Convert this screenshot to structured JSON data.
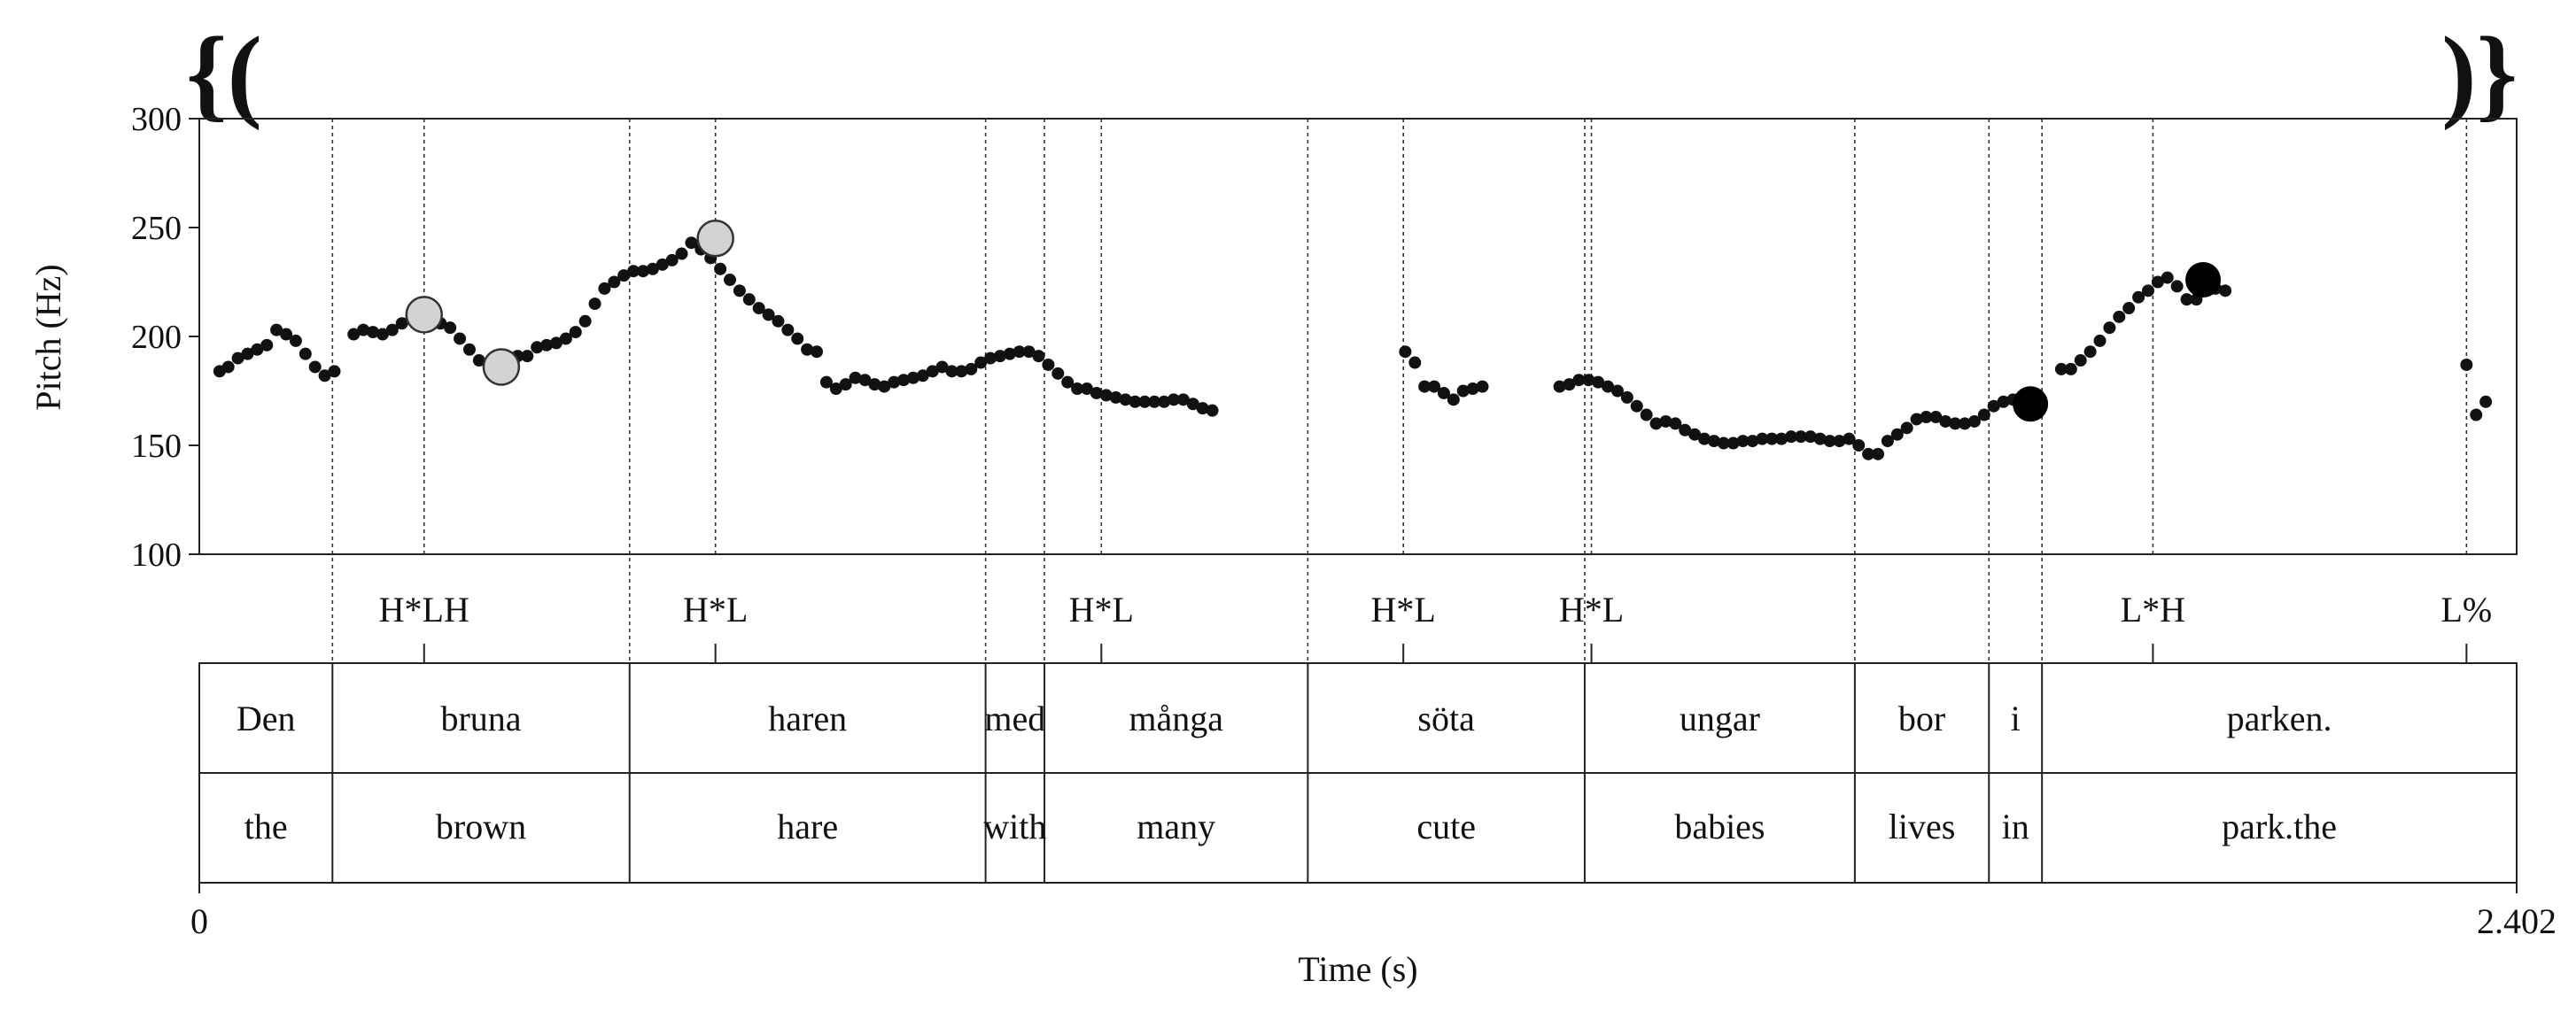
{
  "chart_data": {
    "type": "scatter",
    "title": "",
    "xlabel": "Time (s)",
    "ylabel": "Pitch (Hz)",
    "xlim": [
      0,
      2.402
    ],
    "ylim": [
      100,
      300
    ],
    "x_tick_labels": [
      "0",
      "2.402"
    ],
    "y_ticks": [
      100,
      150,
      200,
      250,
      300
    ],
    "grid": false,
    "brackets": {
      "left": "{(",
      "right": ")}"
    },
    "pitch_contour": [
      [
        0.021,
        184
      ],
      [
        0.03,
        186
      ],
      [
        0.04,
        190
      ],
      [
        0.05,
        192
      ],
      [
        0.06,
        194
      ],
      [
        0.07,
        196
      ],
      [
        0.08,
        203
      ],
      [
        0.09,
        201
      ],
      [
        0.1,
        198
      ],
      [
        0.11,
        192
      ],
      [
        0.12,
        186
      ],
      [
        0.13,
        182
      ],
      [
        0.14,
        184
      ],
      [
        0.16,
        201
      ],
      [
        0.17,
        203
      ],
      [
        0.18,
        202
      ],
      [
        0.19,
        201
      ],
      [
        0.2,
        203
      ],
      [
        0.21,
        206
      ],
      [
        0.22,
        209
      ],
      [
        0.23,
        210
      ],
      [
        0.24,
        209
      ],
      [
        0.25,
        206
      ],
      [
        0.26,
        204
      ],
      [
        0.27,
        199
      ],
      [
        0.28,
        194
      ],
      [
        0.29,
        189
      ],
      [
        0.3,
        187
      ],
      [
        0.31,
        188
      ],
      [
        0.32,
        190
      ],
      [
        0.33,
        191
      ],
      [
        0.34,
        191
      ],
      [
        0.35,
        195
      ],
      [
        0.36,
        196
      ],
      [
        0.37,
        197
      ],
      [
        0.38,
        199
      ],
      [
        0.39,
        202
      ],
      [
        0.4,
        207
      ],
      [
        0.41,
        215
      ],
      [
        0.42,
        222
      ],
      [
        0.43,
        225
      ],
      [
        0.44,
        228
      ],
      [
        0.45,
        230
      ],
      [
        0.46,
        230
      ],
      [
        0.47,
        231
      ],
      [
        0.48,
        233
      ],
      [
        0.49,
        235
      ],
      [
        0.5,
        238
      ],
      [
        0.51,
        243
      ],
      [
        0.52,
        240
      ],
      [
        0.53,
        236
      ],
      [
        0.54,
        231
      ],
      [
        0.55,
        226
      ],
      [
        0.56,
        221
      ],
      [
        0.57,
        217
      ],
      [
        0.58,
        213
      ],
      [
        0.59,
        210
      ],
      [
        0.6,
        207
      ],
      [
        0.61,
        203
      ],
      [
        0.62,
        199
      ],
      [
        0.63,
        194
      ],
      [
        0.64,
        193
      ],
      [
        0.65,
        179
      ],
      [
        0.66,
        176
      ],
      [
        0.67,
        178
      ],
      [
        0.68,
        181
      ],
      [
        0.69,
        180
      ],
      [
        0.7,
        178
      ],
      [
        0.71,
        177
      ],
      [
        0.72,
        179
      ],
      [
        0.73,
        180
      ],
      [
        0.74,
        181
      ],
      [
        0.75,
        182
      ],
      [
        0.76,
        184
      ],
      [
        0.77,
        186
      ],
      [
        0.78,
        184
      ],
      [
        0.79,
        184
      ],
      [
        0.8,
        185
      ],
      [
        0.81,
        188
      ],
      [
        0.82,
        190
      ],
      [
        0.83,
        191
      ],
      [
        0.84,
        192
      ],
      [
        0.85,
        193
      ],
      [
        0.86,
        193
      ],
      [
        0.87,
        191
      ],
      [
        0.88,
        187
      ],
      [
        0.89,
        183
      ],
      [
        0.9,
        179
      ],
      [
        0.91,
        176
      ],
      [
        0.92,
        176
      ],
      [
        0.93,
        174
      ],
      [
        0.94,
        173
      ],
      [
        0.95,
        172
      ],
      [
        0.96,
        171
      ],
      [
        0.97,
        170
      ],
      [
        0.98,
        170
      ],
      [
        0.99,
        170
      ],
      [
        1.0,
        170
      ],
      [
        1.01,
        171
      ],
      [
        1.02,
        171
      ],
      [
        1.03,
        169
      ],
      [
        1.04,
        167
      ],
      [
        1.05,
        166
      ],
      [
        1.25,
        193
      ],
      [
        1.26,
        188
      ],
      [
        1.27,
        177
      ],
      [
        1.28,
        177
      ],
      [
        1.29,
        174
      ],
      [
        1.3,
        171
      ],
      [
        1.31,
        175
      ],
      [
        1.32,
        176
      ],
      [
        1.33,
        177
      ],
      [
        1.41,
        177
      ],
      [
        1.42,
        178
      ],
      [
        1.43,
        180
      ],
      [
        1.44,
        180
      ],
      [
        1.45,
        179
      ],
      [
        1.46,
        177
      ],
      [
        1.47,
        175
      ],
      [
        1.48,
        172
      ],
      [
        1.49,
        168
      ],
      [
        1.5,
        164
      ],
      [
        1.51,
        160
      ],
      [
        1.52,
        161
      ],
      [
        1.53,
        160
      ],
      [
        1.54,
        157
      ],
      [
        1.55,
        155
      ],
      [
        1.56,
        153
      ],
      [
        1.57,
        152
      ],
      [
        1.58,
        151
      ],
      [
        1.59,
        151
      ],
      [
        1.6,
        152
      ],
      [
        1.61,
        152
      ],
      [
        1.62,
        153
      ],
      [
        1.63,
        153
      ],
      [
        1.64,
        153
      ],
      [
        1.65,
        154
      ],
      [
        1.66,
        154
      ],
      [
        1.67,
        154
      ],
      [
        1.68,
        153
      ],
      [
        1.69,
        152
      ],
      [
        1.7,
        152
      ],
      [
        1.71,
        153
      ],
      [
        1.72,
        150
      ],
      [
        1.73,
        146
      ],
      [
        1.74,
        146
      ],
      [
        1.75,
        152
      ],
      [
        1.76,
        155
      ],
      [
        1.77,
        158
      ],
      [
        1.78,
        162
      ],
      [
        1.79,
        163
      ],
      [
        1.8,
        163
      ],
      [
        1.81,
        161
      ],
      [
        1.82,
        160
      ],
      [
        1.83,
        160
      ],
      [
        1.84,
        161
      ],
      [
        1.85,
        164
      ],
      [
        1.86,
        168
      ],
      [
        1.87,
        170
      ],
      [
        1.88,
        171
      ],
      [
        1.93,
        185
      ],
      [
        1.94,
        185
      ],
      [
        1.95,
        189
      ],
      [
        1.96,
        193
      ],
      [
        1.97,
        198
      ],
      [
        1.98,
        204
      ],
      [
        1.99,
        209
      ],
      [
        2.0,
        213
      ],
      [
        2.01,
        218
      ],
      [
        2.02,
        221
      ],
      [
        2.03,
        225
      ],
      [
        2.04,
        227
      ],
      [
        2.05,
        223
      ],
      [
        2.06,
        217
      ],
      [
        2.07,
        217
      ],
      [
        2.08,
        222
      ],
      [
        2.09,
        222
      ],
      [
        2.1,
        221
      ],
      [
        2.35,
        187
      ],
      [
        2.36,
        164
      ],
      [
        2.37,
        170
      ]
    ],
    "highlighted_points_light": [
      [
        0.233,
        210
      ],
      [
        0.313,
        186
      ],
      [
        0.535,
        245
      ]
    ],
    "highlighted_points_dark": [
      [
        1.898,
        169
      ],
      [
        2.077,
        226
      ]
    ],
    "tones_tier": [
      {
        "time": 0.233,
        "label": "H*LH"
      },
      {
        "time": 0.535,
        "label": "H*L"
      },
      {
        "time": 0.935,
        "label": "H*L"
      },
      {
        "time": 1.248,
        "label": "H*L"
      },
      {
        "time": 1.443,
        "label": "H*L"
      },
      {
        "time": 2.025,
        "label": "L*H"
      },
      {
        "time": 2.35,
        "label": "L%"
      }
    ],
    "words": [
      {
        "start": 0.0,
        "end": 0.138,
        "word": "Den",
        "gloss": "the"
      },
      {
        "start": 0.138,
        "end": 0.446,
        "word": "bruna",
        "gloss": "brown"
      },
      {
        "start": 0.446,
        "end": 0.815,
        "word": "haren",
        "gloss": "hare"
      },
      {
        "start": 0.815,
        "end": 0.876,
        "word": "med",
        "gloss": "with"
      },
      {
        "start": 0.876,
        "end": 1.149,
        "word": "många",
        "gloss": "many"
      },
      {
        "start": 1.149,
        "end": 1.436,
        "word": "söta",
        "gloss": "cute"
      },
      {
        "start": 1.436,
        "end": 1.716,
        "word": "ungar",
        "gloss": "babies"
      },
      {
        "start": 1.716,
        "end": 1.855,
        "word": "bor",
        "gloss": "lives"
      },
      {
        "start": 1.855,
        "end": 1.91,
        "word": "i",
        "gloss": "in"
      },
      {
        "start": 1.91,
        "end": 2.402,
        "word": "parken.",
        "gloss": "park.the"
      }
    ]
  }
}
